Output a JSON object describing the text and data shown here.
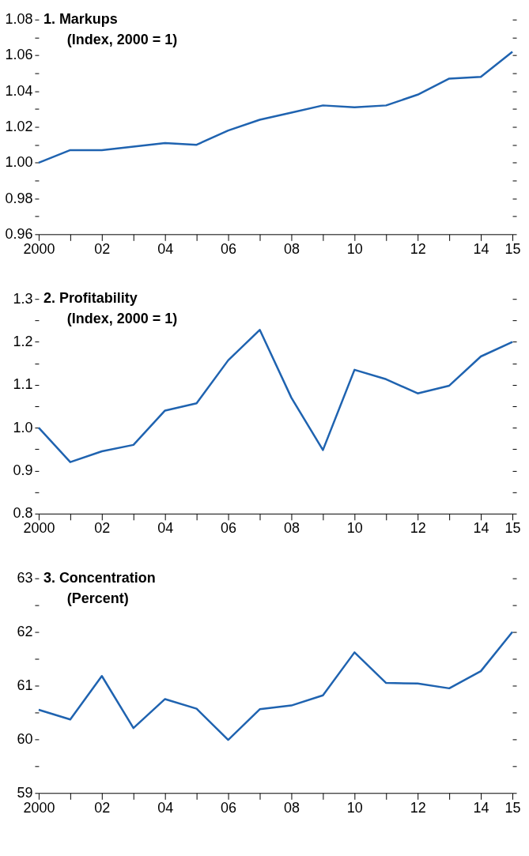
{
  "chart_data": [
    {
      "type": "line",
      "title": "1. Markups",
      "subtitle": "(Index, 2000 = 1)",
      "x": [
        2000,
        2001,
        2002,
        2003,
        2004,
        2005,
        2006,
        2007,
        2008,
        2009,
        2010,
        2011,
        2012,
        2013,
        2014,
        2015
      ],
      "series": [
        {
          "color": "#1f63b0",
          "values": [
            1.0,
            1.007,
            1.007,
            1.009,
            1.011,
            1.01,
            1.018,
            1.024,
            1.028,
            1.032,
            1.031,
            1.032,
            1.038,
            1.047,
            1.048,
            1.062
          ]
        }
      ],
      "xlim": [
        2000,
        2015
      ],
      "xticks": [
        {
          "value": 2000,
          "label": "2000"
        },
        {
          "value": 2001,
          "label": null
        },
        {
          "value": 2002,
          "label": "02"
        },
        {
          "value": 2003,
          "label": null
        },
        {
          "value": 2004,
          "label": "04"
        },
        {
          "value": 2005,
          "label": null
        },
        {
          "value": 2006,
          "label": "06"
        },
        {
          "value": 2007,
          "label": null
        },
        {
          "value": 2008,
          "label": "08"
        },
        {
          "value": 2009,
          "label": null
        },
        {
          "value": 2010,
          "label": "10"
        },
        {
          "value": 2011,
          "label": null
        },
        {
          "value": 2012,
          "label": "12"
        },
        {
          "value": 2013,
          "label": null
        },
        {
          "value": 2014,
          "label": "14"
        },
        {
          "value": 2015,
          "label": "15"
        }
      ],
      "ylim": [
        0.96,
        1.08
      ],
      "yticks": [
        0.96,
        {
          "value": 0.97,
          "label": null
        },
        0.98,
        {
          "value": 0.99,
          "label": null
        },
        {
          "value": 1.0,
          "label": "1.00"
        },
        {
          "value": 1.01,
          "label": null
        },
        1.02,
        {
          "value": 1.03,
          "label": null
        },
        1.04,
        {
          "value": 1.05,
          "label": null
        },
        1.06,
        {
          "value": 1.07,
          "label": null
        },
        1.08
      ],
      "grid": false,
      "marker": "none",
      "line_style": "solid"
    },
    {
      "type": "line",
      "title": "2. Profitability",
      "subtitle": "(Index, 2000 = 1)",
      "x": [
        2000,
        2001,
        2002,
        2003,
        2004,
        2005,
        2006,
        2007,
        2008,
        2009,
        2010,
        2011,
        2012,
        2013,
        2014,
        2015
      ],
      "series": [
        {
          "color": "#1f63b0",
          "values": [
            1.0,
            0.92,
            0.945,
            0.96,
            1.04,
            1.057,
            1.157,
            1.228,
            1.07,
            0.948,
            1.135,
            1.113,
            1.08,
            1.098,
            1.166,
            1.2
          ]
        }
      ],
      "xlim": [
        2000,
        2015
      ],
      "xticks": [
        {
          "value": 2000,
          "label": "2000"
        },
        {
          "value": 2001,
          "label": null
        },
        {
          "value": 2002,
          "label": "02"
        },
        {
          "value": 2003,
          "label": null
        },
        {
          "value": 2004,
          "label": "04"
        },
        {
          "value": 2005,
          "label": null
        },
        {
          "value": 2006,
          "label": "06"
        },
        {
          "value": 2007,
          "label": null
        },
        {
          "value": 2008,
          "label": "08"
        },
        {
          "value": 2009,
          "label": null
        },
        {
          "value": 2010,
          "label": "10"
        },
        {
          "value": 2011,
          "label": null
        },
        {
          "value": 2012,
          "label": "12"
        },
        {
          "value": 2013,
          "label": null
        },
        {
          "value": 2014,
          "label": "14"
        },
        {
          "value": 2015,
          "label": "15"
        }
      ],
      "ylim": [
        0.8,
        1.3
      ],
      "yticks": [
        0.8,
        {
          "value": 0.85,
          "label": null
        },
        0.9,
        {
          "value": 0.95,
          "label": null
        },
        {
          "value": 1.0,
          "label": "1.0"
        },
        {
          "value": 1.05,
          "label": null
        },
        1.1,
        {
          "value": 1.15,
          "label": null
        },
        1.2,
        {
          "value": 1.25,
          "label": null
        },
        1.3
      ],
      "grid": false,
      "marker": "none",
      "line_style": "solid"
    },
    {
      "type": "line",
      "title": "3. Concentration",
      "subtitle": "(Percent)",
      "x": [
        2000,
        2001,
        2002,
        2003,
        2004,
        2005,
        2006,
        2007,
        2008,
        2009,
        2010,
        2011,
        2012,
        2013,
        2014,
        2015
      ],
      "series": [
        {
          "color": "#1f63b0",
          "values": [
            60.55,
            60.37,
            61.18,
            60.21,
            60.75,
            60.57,
            59.99,
            60.56,
            60.63,
            60.82,
            61.62,
            61.05,
            61.04,
            60.95,
            61.27,
            62.0
          ]
        }
      ],
      "xlim": [
        2000,
        2015
      ],
      "xticks": [
        {
          "value": 2000,
          "label": "2000"
        },
        {
          "value": 2001,
          "label": null
        },
        {
          "value": 2002,
          "label": "02"
        },
        {
          "value": 2003,
          "label": null
        },
        {
          "value": 2004,
          "label": "04"
        },
        {
          "value": 2005,
          "label": null
        },
        {
          "value": 2006,
          "label": "06"
        },
        {
          "value": 2007,
          "label": null
        },
        {
          "value": 2008,
          "label": "08"
        },
        {
          "value": 2009,
          "label": null
        },
        {
          "value": 2010,
          "label": "10"
        },
        {
          "value": 2011,
          "label": null
        },
        {
          "value": 2012,
          "label": "12"
        },
        {
          "value": 2013,
          "label": null
        },
        {
          "value": 2014,
          "label": "14"
        },
        {
          "value": 2015,
          "label": "15"
        }
      ],
      "ylim": [
        59,
        63
      ],
      "yticks": [
        59,
        {
          "value": 59.5,
          "label": null
        },
        60,
        {
          "value": 60.5,
          "label": null
        },
        61,
        {
          "value": 61.5,
          "label": null
        },
        62,
        {
          "value": 62.5,
          "label": null
        },
        63
      ],
      "grid": false,
      "marker": "none",
      "line_style": "solid"
    }
  ]
}
